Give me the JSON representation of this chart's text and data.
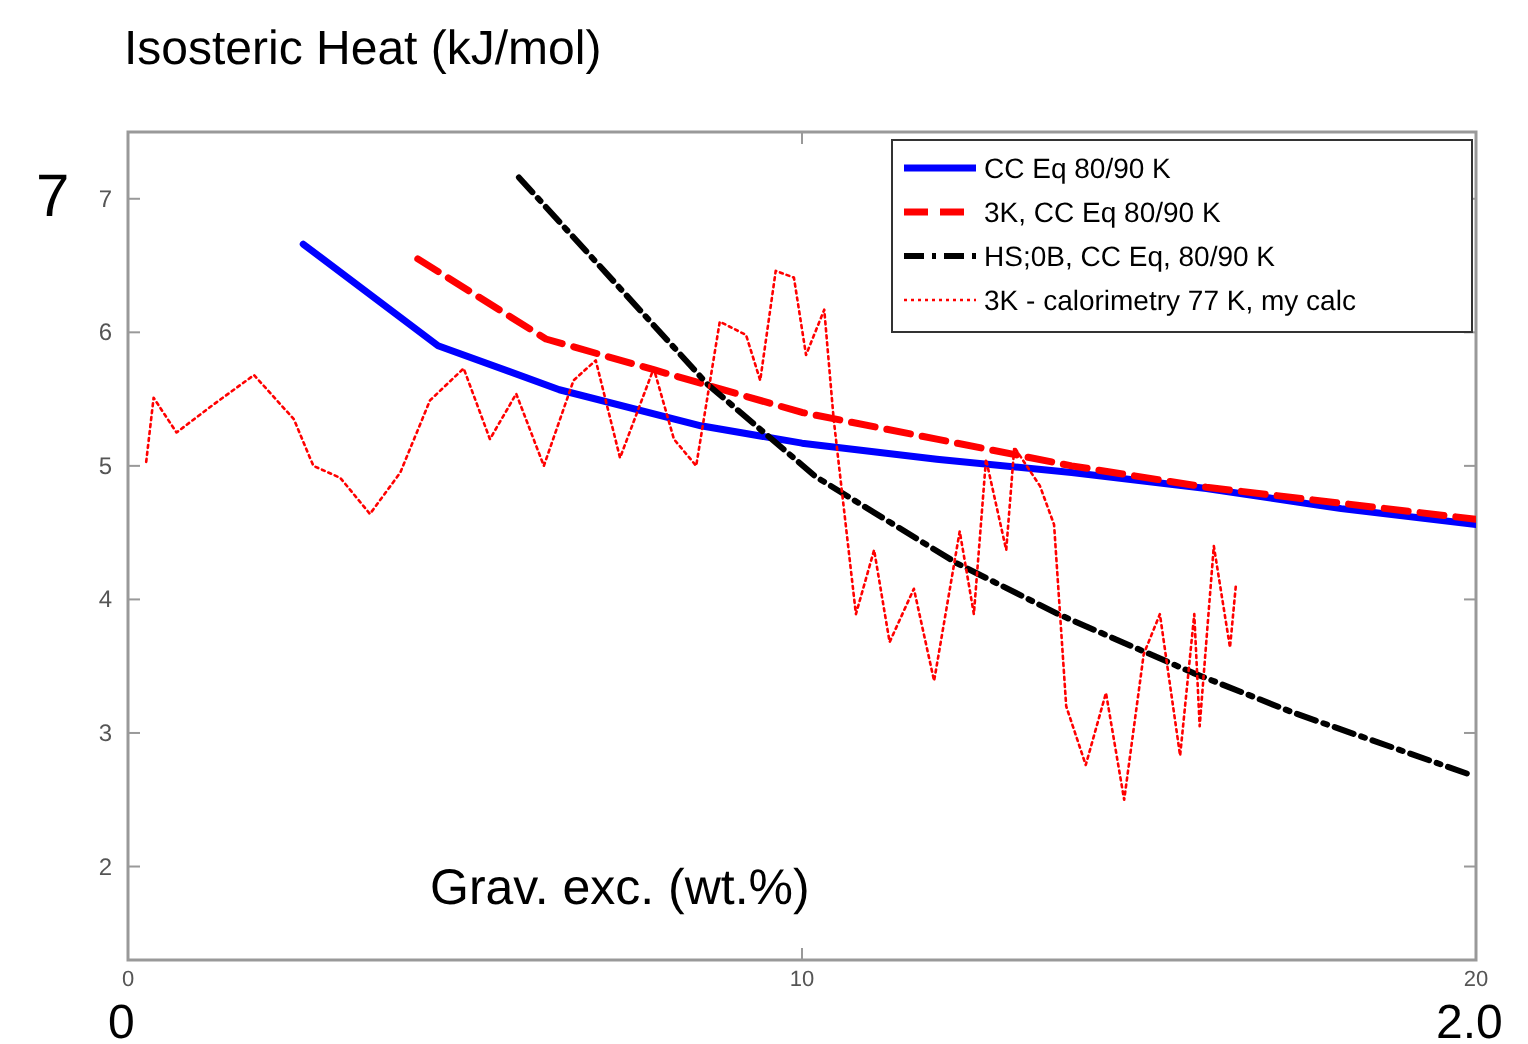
{
  "chart_data": {
    "type": "line",
    "title": "Isosteric Heat (kJ/mol)",
    "xlabel": "Grav. exc. (wt.%)",
    "annotations": [
      "7",
      "0",
      "2.0"
    ],
    "xlim": [
      0,
      20
    ],
    "xticks": [
      0,
      10,
      20
    ],
    "ylim": [
      1.3,
      7.5
    ],
    "yticks": [
      2,
      3,
      4,
      5,
      6,
      7
    ],
    "grid": false,
    "legend": "top right",
    "marker": "none",
    "series": [
      {
        "name": "CC Eq 80/90 K",
        "color": "#0000ff",
        "line_style": "solid",
        "x": [
          2.6,
          4.6,
          6.4,
          8.5,
          10,
          12,
          14,
          16,
          18,
          20
        ],
        "values": [
          6.66,
          5.9,
          5.57,
          5.3,
          5.17,
          5.05,
          4.95,
          4.83,
          4.68,
          4.56
        ]
      },
      {
        "name": "3K, CC Eq 80/90 K",
        "color": "#ff0000",
        "line_style": "dashed",
        "x": [
          4.3,
          6.2,
          7.8,
          10,
          12,
          14,
          16,
          18,
          20
        ],
        "values": [
          6.55,
          5.95,
          5.72,
          5.4,
          5.2,
          5.0,
          4.84,
          4.72,
          4.6
        ]
      },
      {
        "name": "HS;0B, CC Eq, 80/90 K",
        "color": "#000000",
        "line_style": "dashdot",
        "x": [
          5.8,
          8.6,
          10.2,
          12.3,
          13.8,
          15.8,
          17.3,
          19.9
        ],
        "values": [
          7.16,
          5.61,
          4.92,
          4.27,
          3.89,
          3.45,
          3.15,
          2.69
        ]
      },
      {
        "name": "3K - calorimetry 77 K, my calc",
        "color": "#ff0000",
        "line_style": "dotted",
        "x": [
          0.27,
          0.38,
          0.72,
          1.27,
          1.87,
          2.46,
          2.75,
          3.15,
          3.59,
          4.04,
          4.48,
          4.98,
          5.37,
          5.76,
          6.17,
          6.61,
          6.94,
          7.3,
          7.8,
          8.1,
          8.43,
          8.78,
          9.17,
          9.38,
          9.61,
          9.88,
          10.06,
          10.33,
          10.47,
          10.8,
          11.07,
          11.3,
          11.66,
          11.96,
          12.34,
          12.55,
          12.73,
          13.03,
          13.15,
          13.53,
          13.74,
          13.92,
          14.21,
          14.51,
          14.78,
          15.07,
          15.31,
          15.61,
          15.82,
          15.9,
          16.11,
          16.35,
          16.44
        ],
        "values": [
          5.03,
          5.51,
          5.25,
          5.46,
          5.68,
          5.35,
          5.0,
          4.91,
          4.64,
          4.95,
          5.49,
          5.73,
          5.2,
          5.54,
          5.0,
          5.64,
          5.79,
          5.06,
          5.73,
          5.2,
          5.0,
          6.08,
          5.98,
          5.64,
          6.46,
          6.41,
          5.83,
          6.17,
          5.35,
          3.89,
          4.37,
          3.68,
          4.08,
          3.39,
          4.51,
          3.89,
          5.05,
          4.37,
          5.14,
          4.85,
          4.56,
          3.2,
          2.76,
          3.3,
          2.5,
          3.59,
          3.89,
          2.83,
          3.89,
          3.05,
          4.4,
          3.64,
          4.12
        ]
      }
    ]
  }
}
